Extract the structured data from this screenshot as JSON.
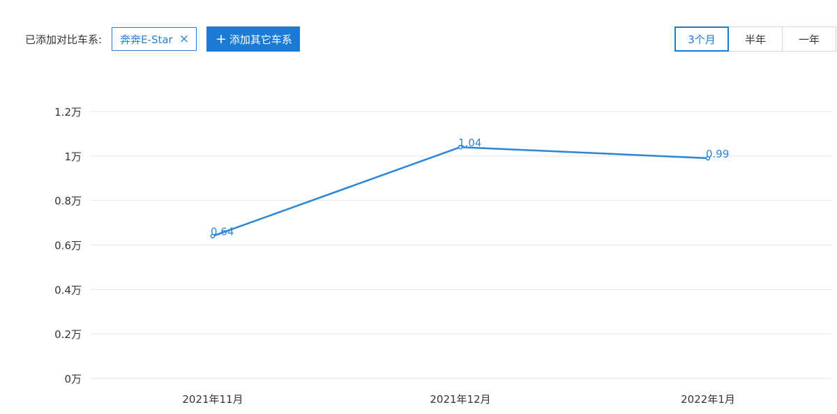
{
  "compare": {
    "label": "已添加对比车系:",
    "tag": "奔奔E-Star",
    "tag_close_icon": "×",
    "add_icon": "+",
    "add_label": "添加其它车系"
  },
  "ranges": [
    {
      "label": "3个月",
      "active": true
    },
    {
      "label": "半年",
      "active": false
    },
    {
      "label": "一年",
      "active": false
    }
  ],
  "chart_data": {
    "type": "line",
    "categories": [
      "2021年11月",
      "2021年12月",
      "2022年1月"
    ],
    "series": [
      {
        "values": [
          0.64,
          1.04,
          0.99
        ],
        "color": "#2a85d6"
      }
    ],
    "data_labels": [
      "0.64",
      "1.04",
      "0.99"
    ],
    "y_ticks": [
      0,
      0.2,
      0.4,
      0.6,
      0.8,
      1,
      1.2
    ],
    "y_tick_labels": [
      "0万",
      "0.2万",
      "0.4万",
      "0.6万",
      "0.8万",
      "1万",
      "1.2万"
    ],
    "ylim": [
      0,
      1.2
    ],
    "grid": true,
    "legend": "none",
    "gridline_color": "#e6e6e6"
  }
}
